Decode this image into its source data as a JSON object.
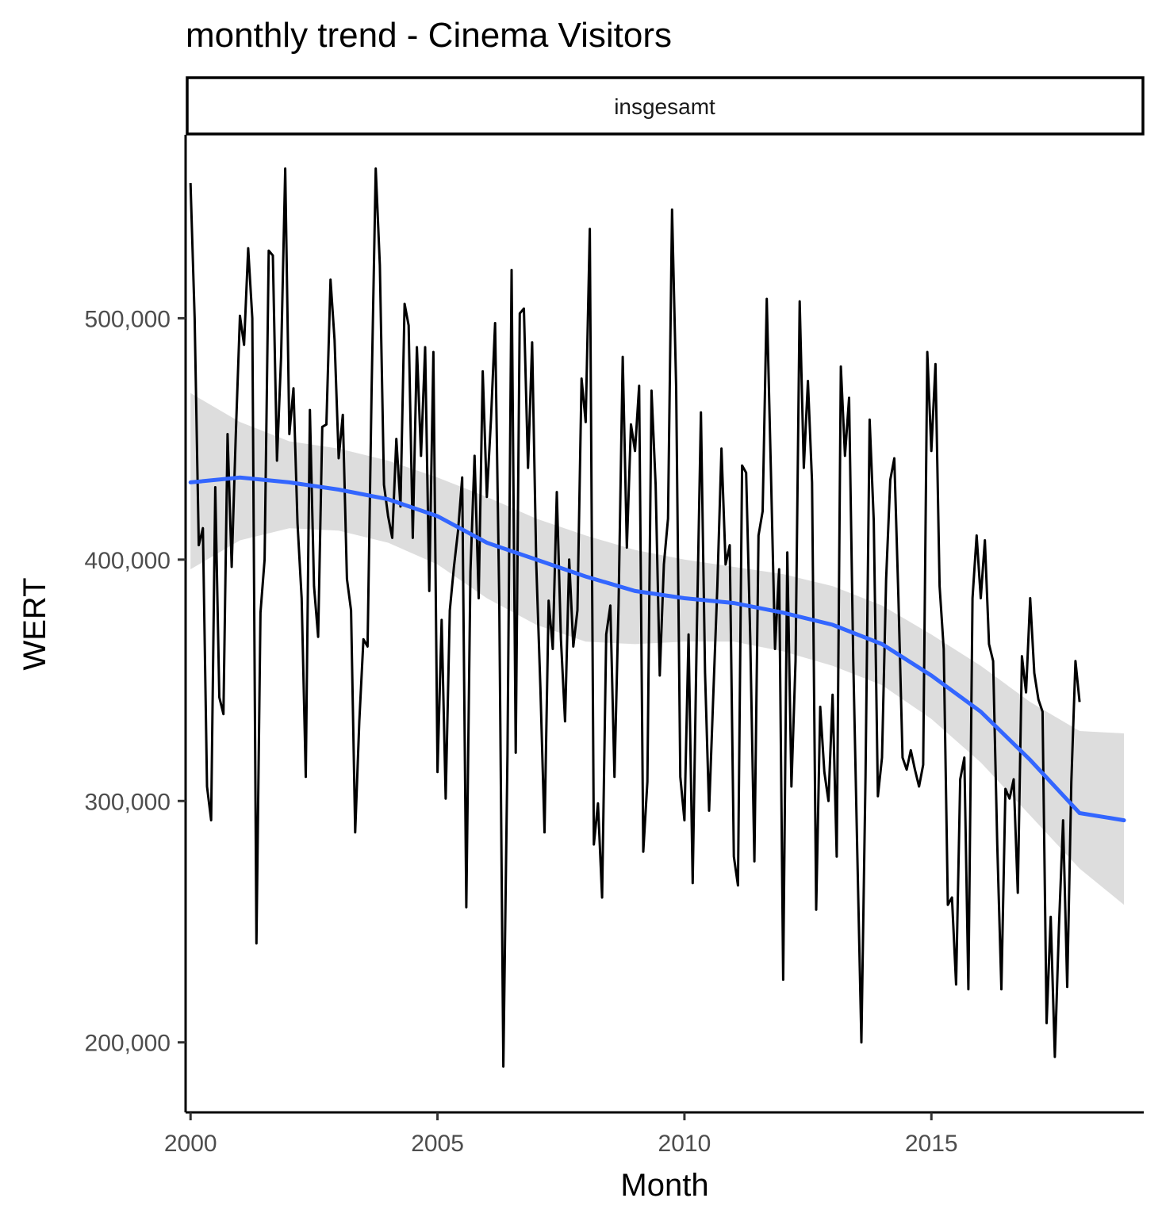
{
  "chart_data": {
    "type": "line",
    "title": "monthly trend - Cinema Visitors",
    "facet_label": "insgesamt",
    "xlabel": "Month",
    "ylabel": "WERT",
    "xlim": [
      1999.9,
      2019.3
    ],
    "ylim": [
      171000,
      576000
    ],
    "x_ticks": [
      2000,
      2005,
      2010,
      2015
    ],
    "x_tick_labels": [
      "2000",
      "2005",
      "2010",
      "2015"
    ],
    "y_ticks": [
      200000,
      300000,
      400000,
      500000
    ],
    "y_tick_labels": [
      "200,000",
      "300,000",
      "400,000",
      "500,000"
    ],
    "grid": false,
    "legend": "none",
    "colors": {
      "line": "#000000",
      "smooth": "#3366ff",
      "ribbon": "#d9d9d9",
      "axis_text": "#4d4d4d"
    },
    "series": [
      {
        "start_year": 2000,
        "interval": "month",
        "values": [
          556000,
          500000,
          406000,
          413000,
          306000,
          292000,
          430000,
          343000,
          336000,
          452000,
          397000,
          452000,
          501000,
          489000,
          529000,
          500000,
          241000,
          378000,
          400000,
          528000,
          526000,
          441000,
          484000,
          562000,
          452000,
          471000,
          415000,
          384000,
          310000,
          462000,
          389000,
          368000,
          455000,
          456000,
          516000,
          491000,
          442000,
          460000,
          392000,
          379000,
          287000,
          333000,
          367000,
          364000,
          470000,
          562000,
          522000,
          431000,
          418000,
          409000,
          450000,
          422000,
          506000,
          497000,
          409000,
          488000,
          443000,
          488000,
          387000,
          486000,
          312000,
          375000,
          301000,
          379000,
          397000,
          412000,
          434000,
          256000,
          395000,
          443000,
          384000,
          478000,
          426000,
          458000,
          498000,
          384000,
          190000,
          319000,
          520000,
          320000,
          502000,
          504000,
          438000,
          490000,
          398000,
          347000,
          287000,
          383000,
          363000,
          428000,
          367000,
          333000,
          400000,
          364000,
          379000,
          475000,
          457000,
          537000,
          282000,
          299000,
          260000,
          369000,
          381000,
          310000,
          382000,
          484000,
          405000,
          456000,
          445000,
          472000,
          279000,
          308000,
          470000,
          431000,
          352000,
          398000,
          417000,
          545000,
          471000,
          310000,
          292000,
          369000,
          266000,
          370000,
          461000,
          353000,
          296000,
          343000,
          389000,
          446000,
          398000,
          406000,
          277000,
          265000,
          439000,
          436000,
          367000,
          275000,
          410000,
          420000,
          508000,
          437000,
          363000,
          396000,
          226000,
          403000,
          306000,
          358000,
          507000,
          438000,
          474000,
          432000,
          255000,
          339000,
          312000,
          300000,
          344000,
          277000,
          480000,
          443000,
          467000,
          359000,
          279000,
          200000,
          310000,
          458000,
          416000,
          302000,
          318000,
          392000,
          433000,
          442000,
          384000,
          318000,
          313000,
          321000,
          313000,
          306000,
          315000,
          486000,
          445000,
          481000,
          389000,
          363000,
          257000,
          260000,
          224000,
          309000,
          318000,
          222000,
          384000,
          410000,
          384000,
          408000,
          365000,
          358000,
          282000,
          222000,
          305000,
          301000,
          309000,
          262000,
          360000,
          345000,
          384000,
          353000,
          342000,
          337000,
          208000,
          252000,
          194000,
          248000,
          292000,
          223000,
          308000,
          358000,
          341000
        ]
      }
    ],
    "smooth": {
      "x": [
        2000,
        2001,
        2002,
        2003,
        2004,
        2005,
        2006,
        2007,
        2008,
        2009,
        2010,
        2011,
        2012,
        2013,
        2014,
        2015,
        2016,
        2017,
        2018,
        2018.9
      ],
      "y": [
        432000,
        434000,
        432000,
        429000,
        425000,
        418000,
        407000,
        400000,
        393000,
        387000,
        384000,
        382000,
        378000,
        373000,
        365000,
        352000,
        337000,
        317000,
        295000,
        292000
      ],
      "lower": [
        396000,
        408000,
        413000,
        412000,
        407000,
        398000,
        384000,
        373000,
        366000,
        365000,
        366000,
        366000,
        362000,
        356000,
        348000,
        334000,
        316000,
        294000,
        272000,
        257000
      ],
      "upper": [
        469000,
        457000,
        449000,
        446000,
        441000,
        434000,
        426000,
        417000,
        410000,
        404000,
        400000,
        397000,
        394000,
        389000,
        381000,
        369000,
        356000,
        341000,
        329000,
        328000
      ]
    }
  }
}
